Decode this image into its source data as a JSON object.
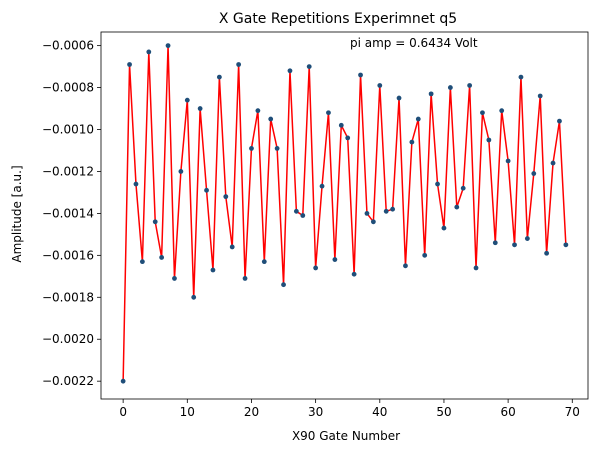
{
  "chart_data": {
    "type": "line",
    "title": "X Gate Repetitions Experimnet q5",
    "xlabel": "X90 Gate Number",
    "ylabel": "Amplitude [a.u.]",
    "annotation": "pi amp = 0.6434 Volt",
    "xlim": [
      -3.45,
      72.45
    ],
    "ylim": [
      -0.002285,
      -0.000535
    ],
    "grid": false,
    "x_ticks": [
      0,
      10,
      20,
      30,
      40,
      50,
      60,
      70
    ],
    "x_tick_labels": [
      "0",
      "10",
      "20",
      "30",
      "40",
      "50",
      "60",
      "70"
    ],
    "y_ticks": [
      -0.0022,
      -0.002,
      -0.0018,
      -0.0016,
      -0.0014,
      -0.0012,
      -0.001,
      -0.0008,
      -0.0006
    ],
    "y_tick_labels": [
      "−0.0022",
      "−0.0020",
      "−0.0018",
      "−0.0016",
      "−0.0014",
      "−0.0012",
      "−0.0010",
      "−0.0008",
      "−0.0006"
    ],
    "colors": {
      "line": "#ff0000",
      "marker": "#1f4e79",
      "axis": "#000000"
    },
    "series": [
      {
        "x": [
          0,
          1,
          2,
          3,
          4,
          5,
          6,
          7,
          8,
          9,
          10,
          11,
          12,
          13,
          14,
          15,
          16,
          17,
          18,
          19,
          20,
          21,
          22,
          23,
          24,
          25,
          26,
          27,
          28,
          29,
          30,
          31,
          32,
          33,
          34,
          35,
          36,
          37,
          38,
          39,
          40,
          41,
          42,
          43,
          44,
          45,
          46,
          47,
          48,
          49,
          50,
          51,
          52,
          53,
          54,
          55,
          56,
          57,
          58,
          59,
          60,
          61,
          62,
          63,
          64,
          65,
          66,
          67,
          68,
          69
        ],
        "y": [
          -0.0022,
          -0.00069,
          -0.00126,
          -0.00163,
          -0.00063,
          -0.00144,
          -0.00161,
          -0.0006,
          -0.00171,
          -0.0012,
          -0.00086,
          -0.0018,
          -0.0009,
          -0.00129,
          -0.00167,
          -0.00075,
          -0.00132,
          -0.00156,
          -0.00069,
          -0.00171,
          -0.00109,
          -0.00091,
          -0.00163,
          -0.00095,
          -0.00109,
          -0.00174,
          -0.00072,
          -0.00139,
          -0.00141,
          -0.0007,
          -0.00166,
          -0.00127,
          -0.00092,
          -0.00162,
          -0.00098,
          -0.00104,
          -0.00169,
          -0.00074,
          -0.0014,
          -0.00144,
          -0.00079,
          -0.00139,
          -0.00138,
          -0.00085,
          -0.00165,
          -0.00106,
          -0.00095,
          -0.0016,
          -0.00083,
          -0.00126,
          -0.00147,
          -0.0008,
          -0.00137,
          -0.00128,
          -0.00079,
          -0.00166,
          -0.00092,
          -0.00105,
          -0.00154,
          -0.00091,
          -0.00115,
          -0.00155,
          -0.00075,
          -0.00152,
          -0.00121,
          -0.00084,
          -0.00159,
          -0.00116,
          -0.00096,
          -0.00155
        ]
      }
    ]
  }
}
